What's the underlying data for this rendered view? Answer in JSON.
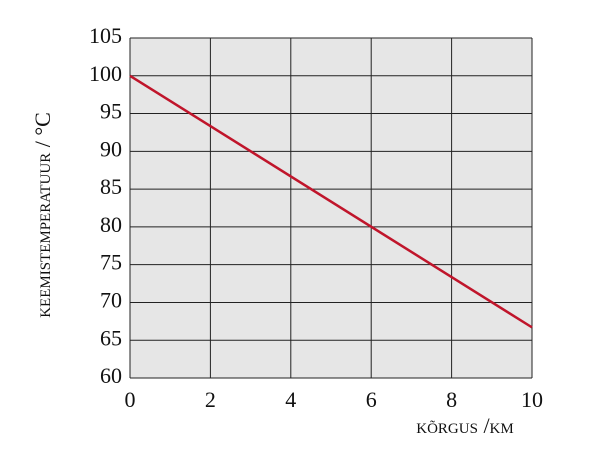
{
  "chart_data": {
    "type": "line",
    "x_label": "kõrgus /km",
    "y_label": "keemistemperatuur / °C",
    "x": [
      0,
      10
    ],
    "series": [
      {
        "color": "#c0152b",
        "values": [
          100,
          66.7
        ]
      }
    ],
    "xlim": [
      0,
      10
    ],
    "xticks": [
      0,
      2,
      4,
      6,
      8,
      10
    ],
    "ylim": [
      60,
      105
    ],
    "yticks": [
      60,
      65,
      70,
      75,
      80,
      85,
      90,
      95,
      100,
      105
    ],
    "grid": true
  }
}
